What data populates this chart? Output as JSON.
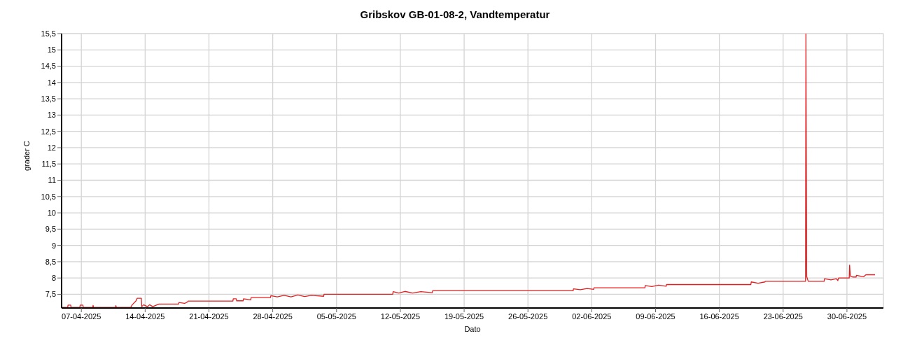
{
  "chart_data": {
    "type": "line",
    "title": "Gribskov GB-01-08-2, Vandtemperatur",
    "xlabel": "Dato",
    "ylabel": "grader C",
    "xlim": [
      "2025-04-04T20:00",
      "2025-07-04T00:00"
    ],
    "xticks": [
      {
        "value": "2025-04-07",
        "label": "07-04-2025"
      },
      {
        "value": "2025-04-14",
        "label": "14-04-2025"
      },
      {
        "value": "2025-04-21",
        "label": "21-04-2025"
      },
      {
        "value": "2025-04-28",
        "label": "28-04-2025"
      },
      {
        "value": "2025-05-05",
        "label": "05-05-2025"
      },
      {
        "value": "2025-05-12",
        "label": "12-05-2025"
      },
      {
        "value": "2025-05-19",
        "label": "19-05-2025"
      },
      {
        "value": "2025-05-26",
        "label": "26-05-2025"
      },
      {
        "value": "2025-06-02",
        "label": "02-06-2025"
      },
      {
        "value": "2025-06-09",
        "label": "09-06-2025"
      },
      {
        "value": "2025-06-16",
        "label": "16-06-2025"
      },
      {
        "value": "2025-06-23",
        "label": "23-06-2025"
      },
      {
        "value": "2025-06-30",
        "label": "30-06-2025"
      }
    ],
    "ylim": [
      7.08,
      15.5
    ],
    "yticks": [
      {
        "value": 7.5,
        "label": "7,5"
      },
      8,
      {
        "value": 8.5,
        "label": "8,5"
      },
      9,
      {
        "value": 9.5,
        "label": "9,5"
      },
      10,
      {
        "value": 10.5,
        "label": "10,5"
      },
      11,
      {
        "value": 11.5,
        "label": "11,5"
      },
      12,
      {
        "value": 12.5,
        "label": "12,5"
      },
      13,
      {
        "value": 13.5,
        "label": "13,5"
      },
      14,
      {
        "value": 14.5,
        "label": "14,5"
      },
      15,
      {
        "value": 15.5,
        "label": "15,5"
      }
    ],
    "grid": true,
    "legend": false,
    "marker": "none",
    "line_style": "solid",
    "series": [
      {
        "color": "#e02020",
        "x": [
          "2025-04-04T20:00",
          "2025-04-05T12:00",
          "2025-04-05T13:00",
          "2025-04-05T20:00",
          "2025-04-05T21:00",
          "2025-04-06T20:00",
          "2025-04-06T21:00",
          "2025-04-07T04:00",
          "2025-04-07T05:00",
          "2025-04-08T06:00",
          "2025-04-08T07:00",
          "2025-04-08T08:00",
          "2025-04-10T18:00",
          "2025-04-10T19:00",
          "2025-04-10T20:00",
          "2025-04-12T10:00",
          "2025-04-12T14:00",
          "2025-04-13T00:00",
          "2025-04-13T03:00",
          "2025-04-13T14:00",
          "2025-04-13T15:00",
          "2025-04-13T20:00",
          "2025-04-14T06:00",
          "2025-04-14T12:00",
          "2025-04-14T20:00",
          "2025-04-15T12:00",
          "2025-04-17T16:00",
          "2025-04-17T17:00",
          "2025-04-18T08:00",
          "2025-04-18T16:00",
          "2025-04-18T17:00",
          "2025-04-23T15:00",
          "2025-04-23T16:00",
          "2025-04-24T00:00",
          "2025-04-24T01:00",
          "2025-04-24T18:00",
          "2025-04-24T19:00",
          "2025-04-25T14:00",
          "2025-04-25T15:00",
          "2025-04-27T18:00",
          "2025-04-27T19:00",
          "2025-04-28T12:00",
          "2025-04-29T06:00",
          "2025-04-30T00:00",
          "2025-04-30T18:00",
          "2025-05-01T12:00",
          "2025-05-02T06:00",
          "2025-05-03T14:00",
          "2025-05-03T15:00",
          "2025-05-11T04:00",
          "2025-05-11T05:00",
          "2025-05-11T20:00",
          "2025-05-12T12:00",
          "2025-05-13T08:00",
          "2025-05-14T06:00",
          "2025-05-15T12:00",
          "2025-05-15T13:00",
          "2025-05-30T23:00",
          "2025-05-31T00:00",
          "2025-05-31T18:00",
          "2025-06-01T12:00",
          "2025-06-02T05:00",
          "2025-06-02T06:00",
          "2025-06-07T20:00",
          "2025-06-07T21:00",
          "2025-06-08T14:00",
          "2025-06-09T08:00",
          "2025-06-10T04:00",
          "2025-06-10T05:00",
          "2025-06-19T11:00",
          "2025-06-19T12:00",
          "2025-06-20T06:00",
          "2025-06-21T00:00",
          "2025-06-21T01:00",
          "2025-06-25T11:00",
          "2025-06-25T12:00",
          "2025-06-25T14:00",
          "2025-06-25T18:00",
          "2025-06-27T12:00",
          "2025-06-27T13:00",
          "2025-06-28T06:00",
          "2025-06-28T20:00",
          "2025-06-29T00:00",
          "2025-06-29T02:00",
          "2025-06-30T06:00",
          "2025-06-30T07:00",
          "2025-06-30T09:00",
          "2025-06-30T16:00",
          "2025-07-01T00:00",
          "2025-07-01T01:00",
          "2025-07-01T20:00",
          "2025-07-02T02:00",
          "2025-07-03T02:00"
        ],
        "values": [
          7.1,
          7.1,
          7.17,
          7.17,
          7.1,
          7.1,
          7.17,
          7.17,
          7.1,
          7.1,
          7.16,
          7.1,
          7.1,
          7.15,
          7.1,
          7.1,
          7.18,
          7.3,
          7.38,
          7.38,
          7.12,
          7.18,
          7.12,
          7.18,
          7.12,
          7.2,
          7.2,
          7.25,
          7.22,
          7.27,
          7.29,
          7.29,
          7.36,
          7.36,
          7.3,
          7.3,
          7.36,
          7.33,
          7.4,
          7.4,
          7.46,
          7.42,
          7.47,
          7.42,
          7.48,
          7.43,
          7.47,
          7.44,
          7.5,
          7.5,
          7.58,
          7.54,
          7.59,
          7.54,
          7.58,
          7.55,
          7.61,
          7.61,
          7.67,
          7.64,
          7.68,
          7.65,
          7.7,
          7.7,
          7.77,
          7.74,
          7.78,
          7.75,
          7.8,
          7.8,
          7.88,
          7.84,
          7.88,
          7.9,
          7.9,
          15.5,
          8.05,
          7.9,
          7.9,
          7.98,
          7.94,
          7.98,
          7.92,
          8.0,
          8.0,
          8.4,
          8.06,
          8.03,
          8.03,
          8.08,
          8.04,
          8.1,
          8.1
        ]
      }
    ]
  }
}
